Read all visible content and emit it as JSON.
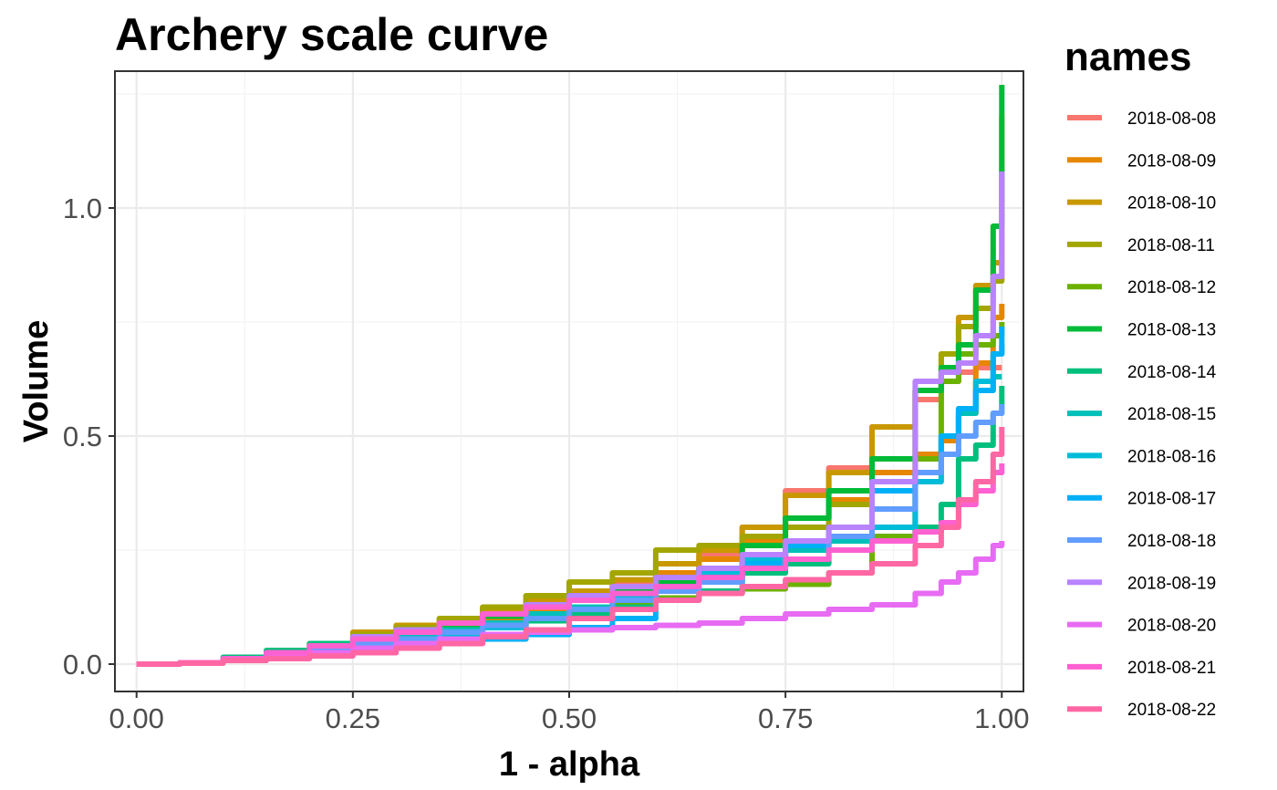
{
  "chart_data": {
    "type": "line",
    "title": "Archery scale curve",
    "xlabel": "1 - alpha",
    "ylabel": "Volume",
    "xlim": [
      -0.025,
      1.025
    ],
    "ylim": [
      -0.06,
      1.3
    ],
    "x_ticks": [
      0.0,
      0.25,
      0.5,
      0.75,
      1.0
    ],
    "x_tick_labels": [
      "0.00",
      "0.25",
      "0.50",
      "0.75",
      "1.00"
    ],
    "y_ticks": [
      0.0,
      0.5,
      1.0
    ],
    "y_tick_labels": [
      "0.0",
      "0.5",
      "1.0"
    ],
    "grid": true,
    "legend": {
      "title": "names",
      "position": "right"
    },
    "x": [
      0.0,
      0.05,
      0.1,
      0.15,
      0.2,
      0.25,
      0.3,
      0.35,
      0.4,
      0.45,
      0.5,
      0.55,
      0.6,
      0.65,
      0.7,
      0.75,
      0.8,
      0.85,
      0.9,
      0.93,
      0.95,
      0.97,
      0.99,
      1.0
    ],
    "series": [
      {
        "name": "2018-08-08",
        "color": "#F8766D",
        "values": [
          0,
          0.003,
          0.01,
          0.02,
          0.035,
          0.05,
          0.065,
          0.08,
          0.1,
          0.12,
          0.15,
          0.18,
          0.2,
          0.24,
          0.3,
          0.38,
          0.43,
          0.52,
          0.58,
          0.62,
          0.64,
          0.65,
          0.65,
          0.65
        ]
      },
      {
        "name": "2018-08-09",
        "color": "#E58700",
        "values": [
          0,
          0.003,
          0.01,
          0.02,
          0.035,
          0.05,
          0.065,
          0.08,
          0.1,
          0.12,
          0.145,
          0.17,
          0.2,
          0.23,
          0.27,
          0.32,
          0.36,
          0.42,
          0.46,
          0.49,
          0.55,
          0.66,
          0.76,
          0.79
        ]
      },
      {
        "name": "2018-08-10",
        "color": "#C99800",
        "values": [
          0,
          0.003,
          0.012,
          0.025,
          0.045,
          0.07,
          0.085,
          0.1,
          0.12,
          0.14,
          0.16,
          0.185,
          0.22,
          0.25,
          0.3,
          0.37,
          0.42,
          0.52,
          0.6,
          0.68,
          0.76,
          0.83,
          0.88,
          1.2
        ]
      },
      {
        "name": "2018-08-11",
        "color": "#A3A500",
        "values": [
          0,
          0.003,
          0.012,
          0.025,
          0.045,
          0.065,
          0.08,
          0.1,
          0.125,
          0.15,
          0.18,
          0.2,
          0.25,
          0.26,
          0.28,
          0.3,
          0.35,
          0.45,
          0.6,
          0.68,
          0.74,
          0.78,
          0.84,
          0.9
        ]
      },
      {
        "name": "2018-08-12",
        "color": "#6BB100",
        "values": [
          0,
          0.003,
          0.01,
          0.02,
          0.03,
          0.045,
          0.055,
          0.065,
          0.08,
          0.1,
          0.115,
          0.13,
          0.145,
          0.155,
          0.165,
          0.175,
          0.2,
          0.28,
          0.45,
          0.62,
          0.68,
          0.7,
          0.72,
          0.75
        ]
      },
      {
        "name": "2018-08-13",
        "color": "#00BA38",
        "values": [
          0,
          0.003,
          0.01,
          0.02,
          0.035,
          0.05,
          0.07,
          0.085,
          0.105,
          0.125,
          0.15,
          0.165,
          0.18,
          0.21,
          0.26,
          0.32,
          0.38,
          0.45,
          0.6,
          0.65,
          0.7,
          0.82,
          0.96,
          1.27
        ]
      },
      {
        "name": "2018-08-14",
        "color": "#00BF7D",
        "values": [
          0,
          0.003,
          0.015,
          0.03,
          0.045,
          0.055,
          0.065,
          0.075,
          0.085,
          0.095,
          0.11,
          0.125,
          0.14,
          0.16,
          0.2,
          0.22,
          0.25,
          0.27,
          0.3,
          0.35,
          0.45,
          0.48,
          0.55,
          0.61
        ]
      },
      {
        "name": "2018-08-15",
        "color": "#00C0B8",
        "values": [
          0,
          0.003,
          0.012,
          0.025,
          0.04,
          0.05,
          0.06,
          0.075,
          0.09,
          0.11,
          0.125,
          0.14,
          0.16,
          0.18,
          0.22,
          0.25,
          0.27,
          0.3,
          0.42,
          0.5,
          0.55,
          0.6,
          0.63,
          0.63
        ]
      },
      {
        "name": "2018-08-16",
        "color": "#00BCD8",
        "values": [
          0,
          0.003,
          0.01,
          0.02,
          0.03,
          0.04,
          0.05,
          0.065,
          0.08,
          0.1,
          0.12,
          0.145,
          0.17,
          0.2,
          0.23,
          0.26,
          0.28,
          0.3,
          0.4,
          0.5,
          0.56,
          0.62,
          0.68,
          0.7
        ]
      },
      {
        "name": "2018-08-17",
        "color": "#00B0F6",
        "values": [
          0,
          0.003,
          0.01,
          0.015,
          0.025,
          0.035,
          0.04,
          0.05,
          0.055,
          0.065,
          0.08,
          0.1,
          0.16,
          0.19,
          0.22,
          0.26,
          0.3,
          0.38,
          0.42,
          0.5,
          0.56,
          0.6,
          0.68,
          0.74
        ]
      },
      {
        "name": "2018-08-18",
        "color": "#619CFF",
        "values": [
          0,
          0.003,
          0.01,
          0.02,
          0.03,
          0.045,
          0.055,
          0.07,
          0.085,
          0.1,
          0.12,
          0.14,
          0.16,
          0.18,
          0.21,
          0.23,
          0.28,
          0.34,
          0.42,
          0.46,
          0.5,
          0.53,
          0.55,
          0.57
        ]
      },
      {
        "name": "2018-08-19",
        "color": "#B983FF",
        "values": [
          0,
          0.003,
          0.012,
          0.025,
          0.04,
          0.06,
          0.075,
          0.09,
          0.11,
          0.13,
          0.15,
          0.17,
          0.19,
          0.21,
          0.24,
          0.27,
          0.3,
          0.4,
          0.62,
          0.64,
          0.66,
          0.72,
          0.85,
          1.08
        ]
      },
      {
        "name": "2018-08-20",
        "color": "#E76BF3",
        "values": [
          0,
          0.002,
          0.008,
          0.015,
          0.025,
          0.035,
          0.045,
          0.055,
          0.065,
          0.07,
          0.075,
          0.08,
          0.085,
          0.09,
          0.1,
          0.11,
          0.12,
          0.13,
          0.155,
          0.18,
          0.2,
          0.23,
          0.26,
          0.27
        ]
      },
      {
        "name": "2018-08-21",
        "color": "#FD61D1",
        "values": [
          0,
          0.003,
          0.012,
          0.025,
          0.04,
          0.055,
          0.07,
          0.09,
          0.11,
          0.125,
          0.14,
          0.155,
          0.17,
          0.19,
          0.21,
          0.23,
          0.25,
          0.27,
          0.29,
          0.31,
          0.35,
          0.38,
          0.42,
          0.44
        ]
      },
      {
        "name": "2018-08-22",
        "color": "#FF67A4",
        "values": [
          0,
          0.002,
          0.008,
          0.012,
          0.018,
          0.025,
          0.035,
          0.045,
          0.06,
          0.075,
          0.1,
          0.12,
          0.14,
          0.155,
          0.17,
          0.185,
          0.2,
          0.22,
          0.26,
          0.3,
          0.36,
          0.4,
          0.46,
          0.52
        ]
      }
    ]
  }
}
